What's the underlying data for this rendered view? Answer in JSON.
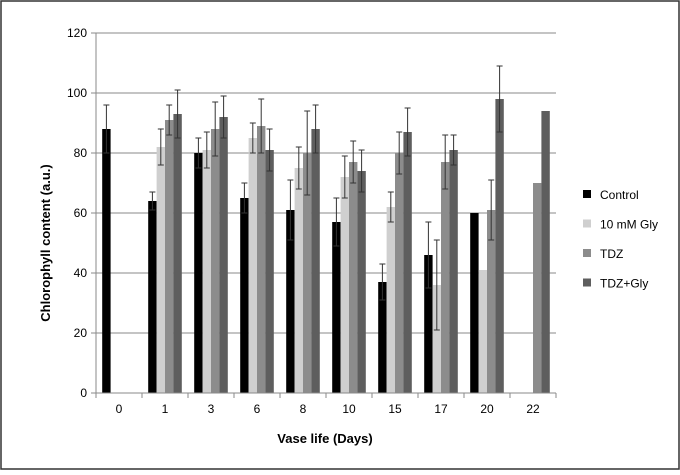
{
  "chart_data": {
    "type": "bar",
    "title": "",
    "xlabel": "Vase life (Days)",
    "ylabel": "Chlorophyll content (a.u.)",
    "ylim": [
      0,
      120
    ],
    "yticks": [
      "0",
      "20",
      "40",
      "60",
      "80",
      "100",
      "120"
    ],
    "grid": true,
    "legend_position": "right",
    "categories": [
      "0",
      "1",
      "3",
      "6",
      "8",
      "10",
      "15",
      "17",
      "20",
      "22"
    ],
    "series": [
      {
        "name": "Control",
        "color": "#000000",
        "values": [
          88,
          64,
          80,
          65,
          61,
          57,
          37,
          46,
          60,
          null
        ],
        "errors": [
          8,
          3,
          5,
          5,
          10,
          8,
          6,
          11,
          0,
          0
        ]
      },
      {
        "name": "10 mM Gly",
        "color": "#cfcfcf",
        "values": [
          null,
          82,
          81,
          85,
          75,
          72,
          62,
          36,
          41,
          null
        ],
        "errors": [
          0,
          6,
          6,
          5,
          7,
          7,
          5,
          15,
          0,
          0
        ]
      },
      {
        "name": "TDZ",
        "color": "#8c8c8c",
        "values": [
          null,
          91,
          88,
          89,
          80,
          77,
          80,
          77,
          61,
          70
        ],
        "errors": [
          0,
          5,
          9,
          9,
          14,
          7,
          7,
          9,
          10,
          0
        ]
      },
      {
        "name": "TDZ+Gly",
        "color": "#5e5e5e",
        "values": [
          null,
          93,
          92,
          81,
          88,
          74,
          87,
          81,
          98,
          94
        ],
        "errors": [
          0,
          8,
          7,
          7,
          8,
          7,
          8,
          5,
          11,
          0
        ]
      }
    ]
  }
}
